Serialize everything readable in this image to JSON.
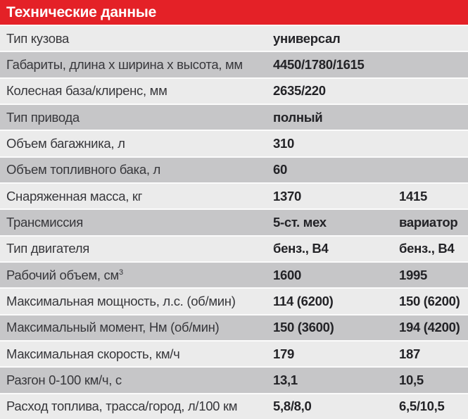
{
  "header": {
    "title": "Технические данные"
  },
  "colors": {
    "header_bg": "#e42127",
    "header_text": "#ffffff",
    "row_light": "#ebebeb",
    "row_dark": "#c6c6c8",
    "separator": "#fbfbfb",
    "label_text": "#37373b",
    "value_text": "#232327"
  },
  "table": {
    "rows": [
      {
        "label": "Тип кузова",
        "label_sup": "",
        "value1": "универсал",
        "value2": ""
      },
      {
        "label": "Габариты, длина х ширина х высота, мм",
        "label_sup": "",
        "value1": "4450/1780/1615",
        "value2": ""
      },
      {
        "label": "Колесная база/клиренс, мм",
        "label_sup": "",
        "value1": "2635/220",
        "value2": ""
      },
      {
        "label": "Тип привода",
        "label_sup": "",
        "value1": "полный",
        "value2": ""
      },
      {
        "label": "Объем багажника, л",
        "label_sup": "",
        "value1": "310",
        "value2": ""
      },
      {
        "label": "Объем топливного бака, л",
        "label_sup": "",
        "value1": "60",
        "value2": ""
      },
      {
        "label": "Снаряженная масса, кг",
        "label_sup": "",
        "value1": "1370",
        "value2": "1415"
      },
      {
        "label": "Трансмиссия",
        "label_sup": "",
        "value1": "5-ст. мех",
        "value2": "вариатор"
      },
      {
        "label": "Тип двигателя",
        "label_sup": "",
        "value1": "бенз., В4",
        "value2": "бенз., В4"
      },
      {
        "label": "Рабочий объем, см",
        "label_sup": "3",
        "value1": "1600",
        "value2": "1995"
      },
      {
        "label": "Максимальная мощность, л.с. (об/мин)",
        "label_sup": "",
        "value1": "114 (6200)",
        "value2": "150 (6200)"
      },
      {
        "label": "Максимальный момент, Нм (об/мин)",
        "label_sup": "",
        "value1": "150 (3600)",
        "value2": "194 (4200)"
      },
      {
        "label": "Максимальная скорость, км/ч",
        "label_sup": "",
        "value1": "179",
        "value2": "187"
      },
      {
        "label": "Разгон 0-100 км/ч, с",
        "label_sup": "",
        "value1": "13,1",
        "value2": "10,5"
      },
      {
        "label": "Расход топлива, трасса/город, л/100 км",
        "label_sup": "",
        "value1": "5,8/8,0",
        "value2": "6,5/10,5"
      }
    ]
  }
}
